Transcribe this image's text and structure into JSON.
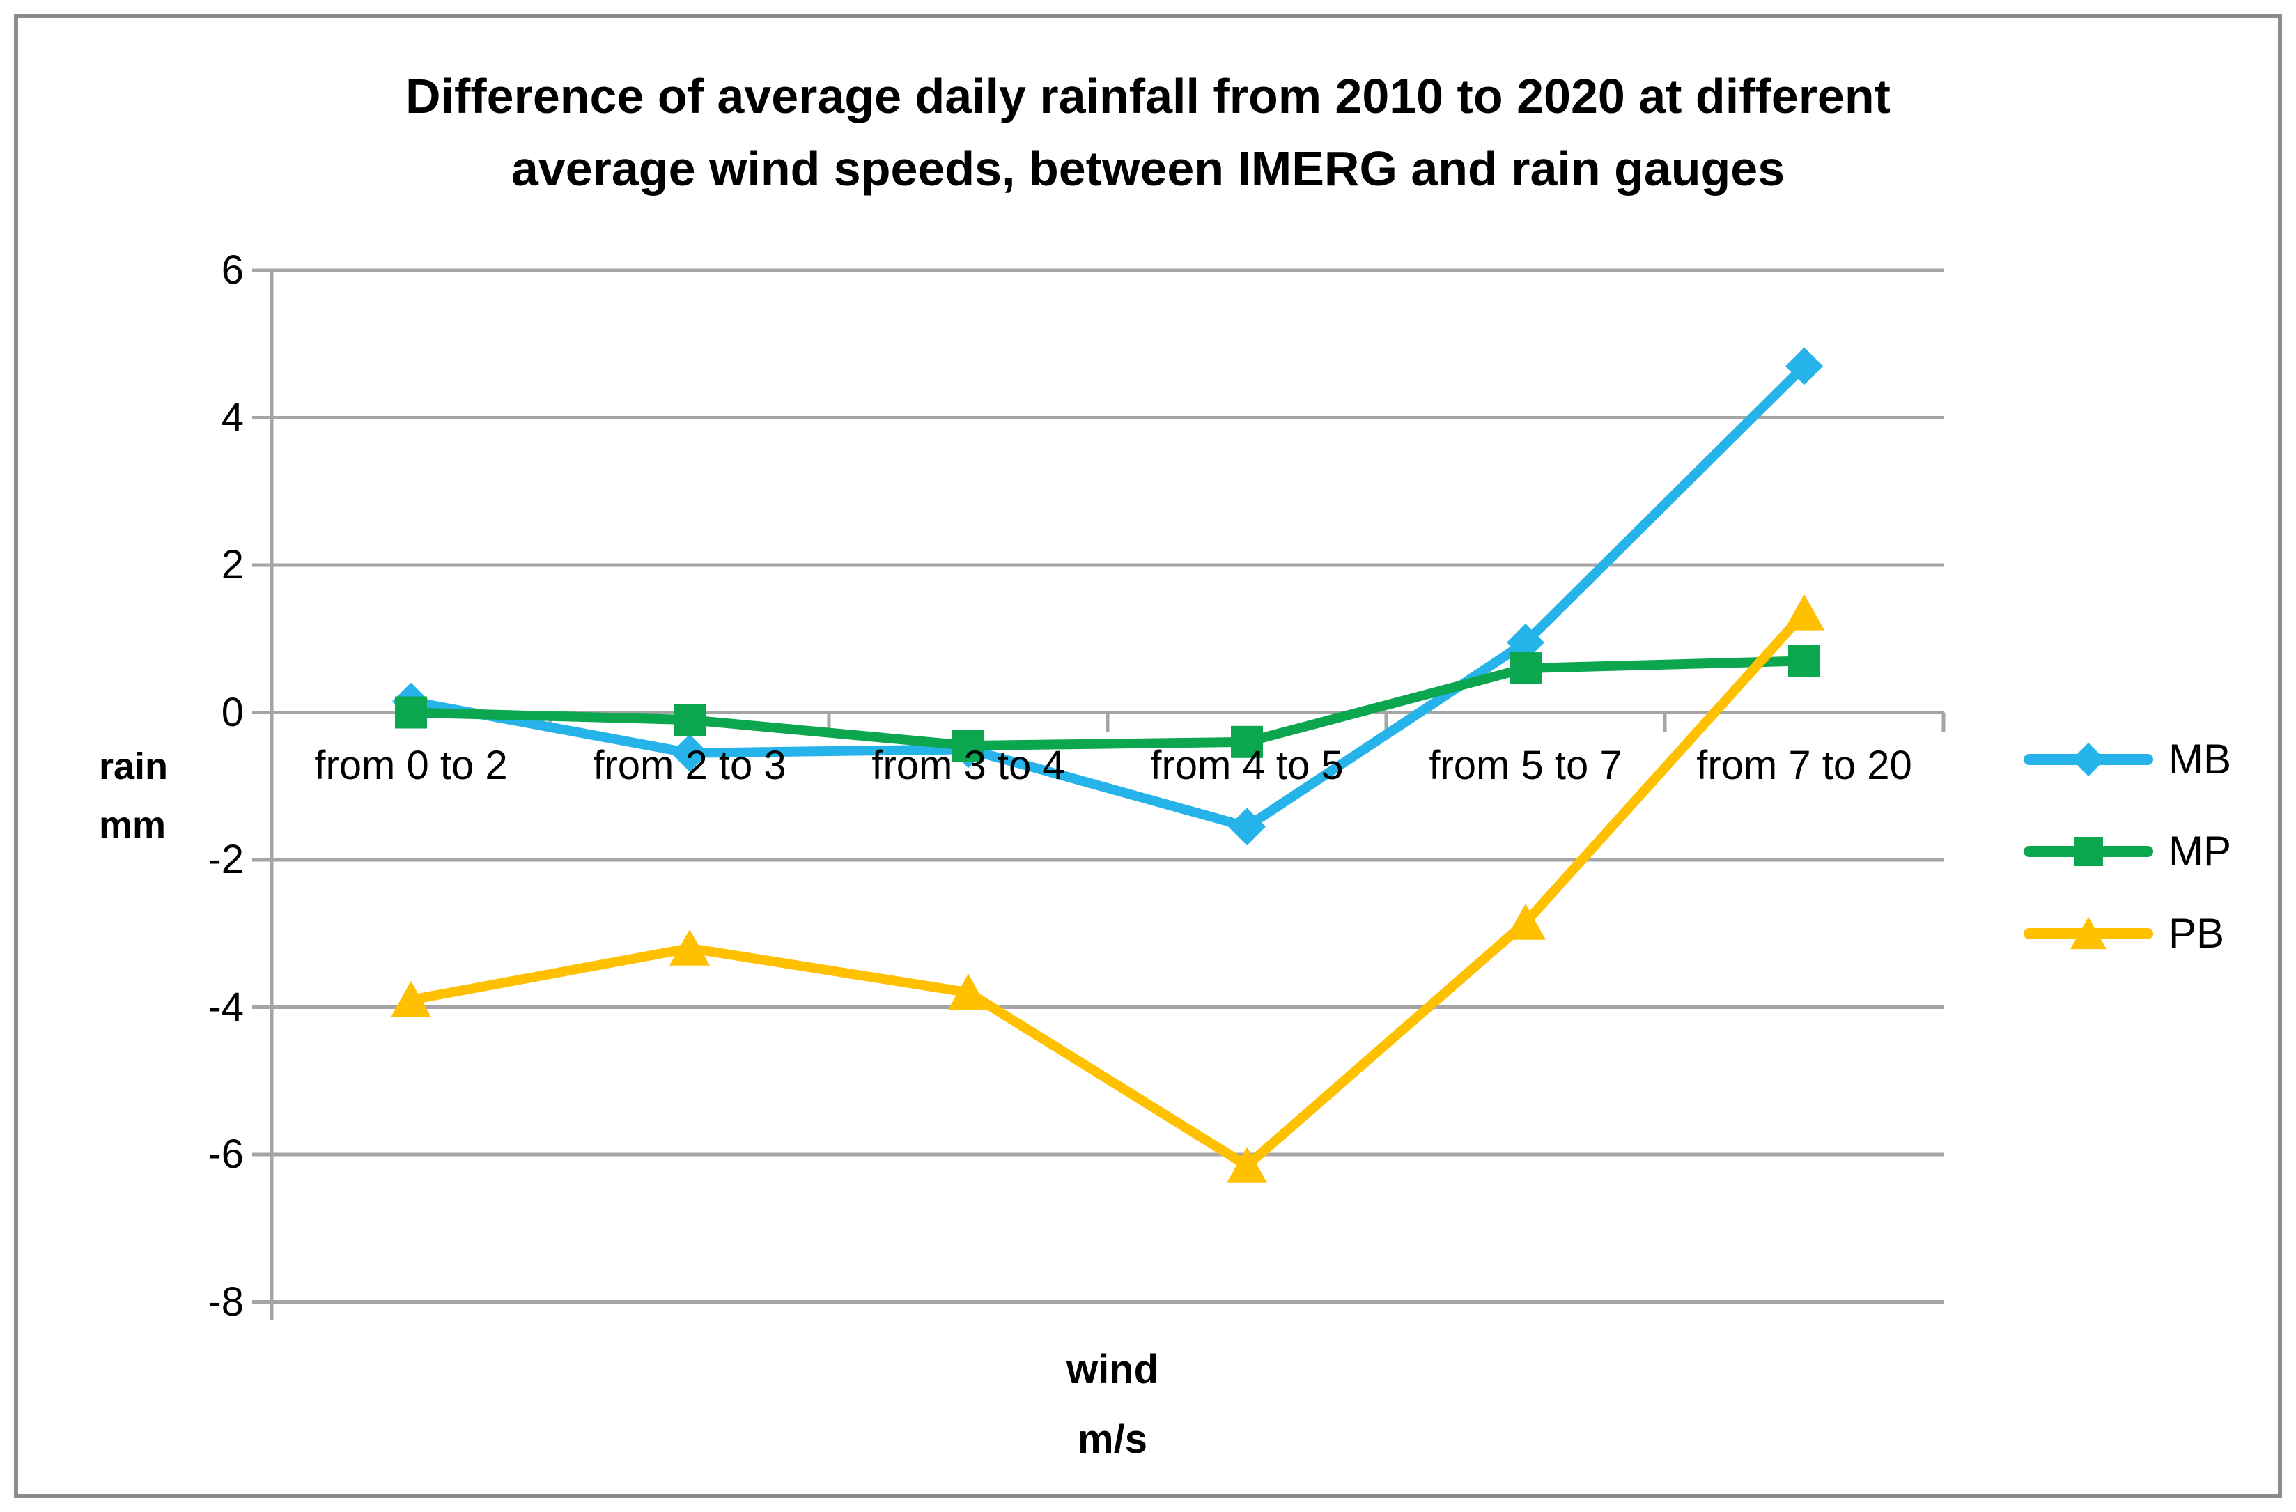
{
  "title": {
    "line1": "Difference of average daily rainfall from 2010 to 2020 at different",
    "line2": "average wind speeds, between IMERG and rain gauges"
  },
  "y_axis": {
    "label_line1": "rain",
    "label_line2": "mm",
    "ticks": [
      "6",
      "4",
      "2",
      "0",
      "-2",
      "-4",
      "-6",
      "-8"
    ]
  },
  "x_axis": {
    "label_line1": "wind",
    "label_line2": "m/s"
  },
  "chart_data": {
    "type": "line",
    "categories": [
      "from 0 to 2",
      "from 2 to 3",
      "from 3 to 4",
      "from 4 to 5",
      "from 5 to 7",
      "from 7 to 20"
    ],
    "series": [
      {
        "name": "MB",
        "marker": "diamond",
        "color": "#26b3ea",
        "values": [
          0.15,
          -0.55,
          -0.5,
          -1.55,
          0.95,
          4.7
        ]
      },
      {
        "name": "MP",
        "marker": "square",
        "color": "#0ca64e",
        "values": [
          0.0,
          -0.1,
          -0.45,
          -0.4,
          0.6,
          0.7
        ]
      },
      {
        "name": "PB",
        "marker": "triangle",
        "color": "#ffc000",
        "values": [
          -3.9,
          -3.2,
          -3.8,
          -6.15,
          -2.85,
          1.35
        ]
      }
    ],
    "title": "Difference of average daily rainfall from 2010 to 2020 at different average wind speeds, between IMERG and rain gauges",
    "xlabel": "wind m/s",
    "ylabel": "rain mm",
    "ylim": [
      -8,
      6
    ],
    "ytick_step": 2,
    "grid": "horizontal",
    "legend_position": "right",
    "colors": {
      "gridline": "#a5a5a5",
      "axis": "#a5a5a5",
      "frame": "#8c8c8c",
      "text": "#000000"
    }
  }
}
